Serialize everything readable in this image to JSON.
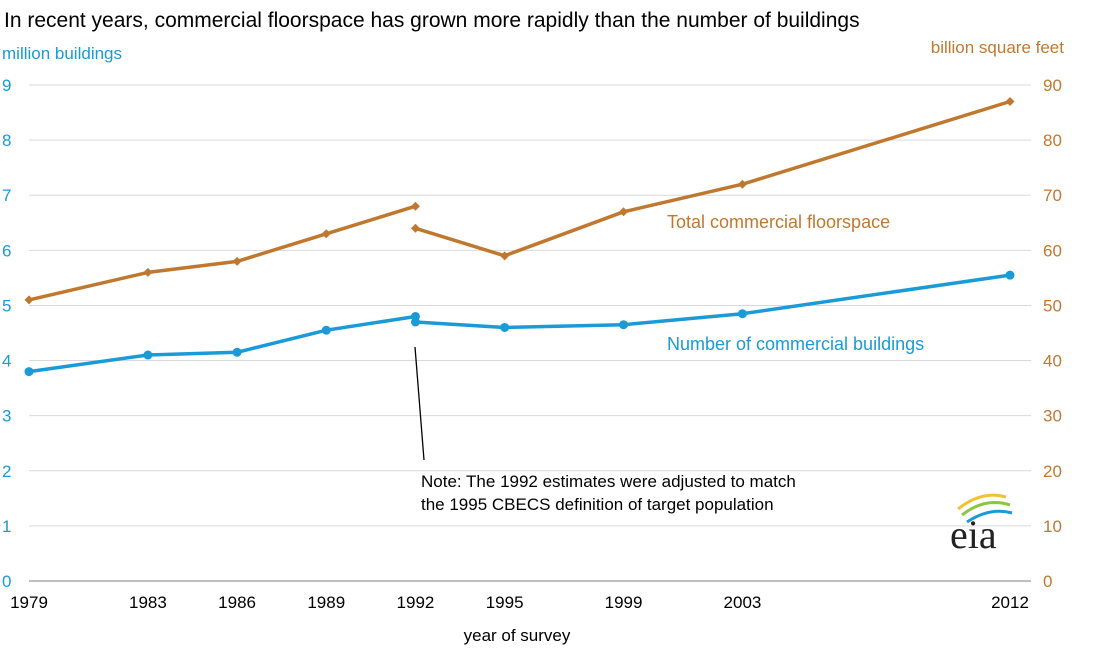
{
  "colors": {
    "buildings": "#1a9ad6",
    "floorspace": "#c0782f",
    "grid": "#d9d9d9",
    "axis": "#7f7f7f"
  },
  "chart_data": {
    "type": "line",
    "title": "In recent years, commercial floorspace has grown more rapidly than the number of buildings",
    "xlabel": "year of survey",
    "ylabel_left": "million  buildings",
    "ylabel_right": "billion  square feet",
    "x_ticks": [
      "1979",
      "1983",
      "1986",
      "1989",
      "1992",
      "1995",
      "1999",
      "2003",
      "2012"
    ],
    "xlim": [
      1979,
      2012
    ],
    "ylim_left": [
      0,
      9
    ],
    "ylim_right": [
      0,
      90
    ],
    "y_ticks_left": [
      "0",
      "1",
      "2",
      "3",
      "4",
      "5",
      "6",
      "7",
      "8",
      "9"
    ],
    "y_ticks_right": [
      "0",
      "10",
      "20",
      "30",
      "40",
      "50",
      "60",
      "70",
      "80",
      "90"
    ],
    "grid": true,
    "series": [
      {
        "name": "Number of commercial buildings",
        "axis": "left",
        "marker": "circle",
        "segments": [
          {
            "x": [
              1979,
              1983,
              1986,
              1989,
              1992
            ],
            "y": [
              3.8,
              4.1,
              4.15,
              4.55,
              4.8
            ]
          },
          {
            "x": [
              1992,
              1995,
              1999,
              2003,
              2012
            ],
            "y": [
              4.7,
              4.6,
              4.65,
              4.85,
              5.55
            ]
          }
        ]
      },
      {
        "name": "Total commercial floorspace",
        "axis": "right",
        "marker": "diamond",
        "segments": [
          {
            "x": [
              1979,
              1983,
              1986,
              1989,
              1992
            ],
            "y": [
              51,
              56,
              58,
              63,
              68
            ]
          },
          {
            "x": [
              1992,
              1995,
              1999,
              2003,
              2012
            ],
            "y": [
              64,
              59,
              67,
              72,
              87
            ]
          }
        ]
      }
    ],
    "annotation": {
      "lines": [
        "Note: The 1992 estimates were adjusted to match",
        "the 1995 CBECS definition of target population"
      ]
    },
    "logo_text": "eia"
  }
}
